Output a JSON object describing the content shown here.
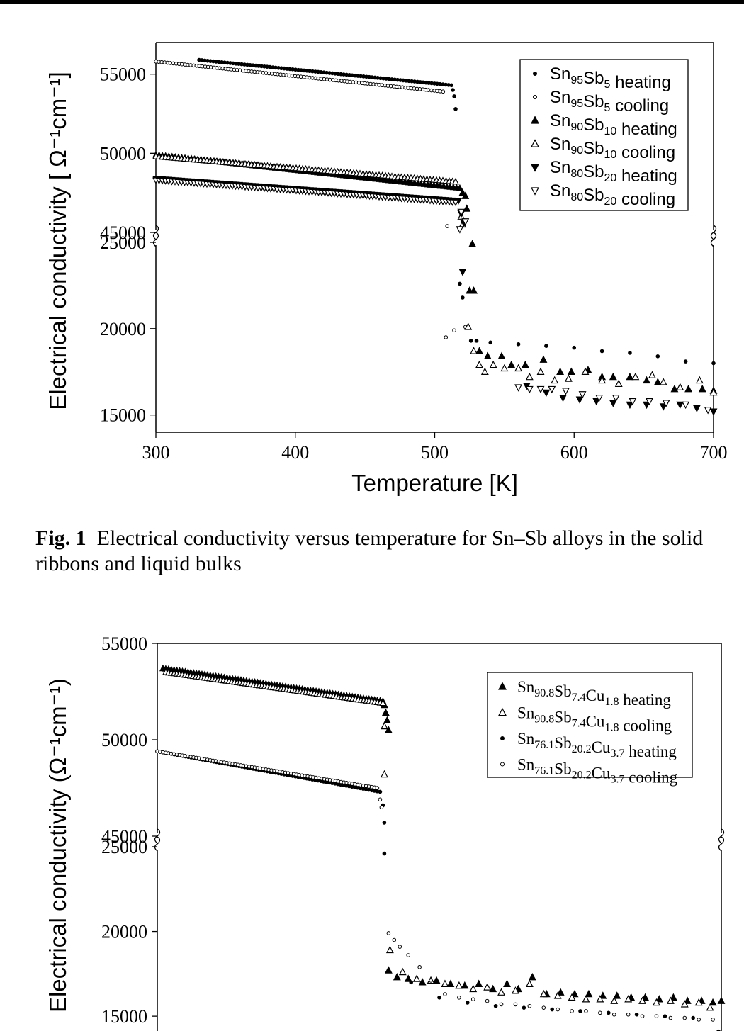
{
  "figure1": {
    "caption_label": "Fig. 1",
    "caption_text": "Electrical conductivity versus temperature for Sn–Sb alloys in the solid ribbons and liquid bulks"
  },
  "chart_data": [
    {
      "type": "scatter",
      "xlabel": "Temperature [K]",
      "ylabel": "Electrical conductivity [ Ω⁻¹cm⁻¹]",
      "xlim": [
        300,
        700
      ],
      "xticks": [
        300,
        400,
        500,
        600,
        700
      ],
      "ylim_upper": [
        45000,
        57000
      ],
      "ylim_lower": [
        14000,
        25000
      ],
      "yticks_upper": [
        45000,
        50000,
        55000
      ],
      "yticks_lower": [
        15000,
        20000,
        25000
      ],
      "axis_break": true,
      "legend_position": "top-right",
      "series": [
        {
          "name": "Sn95Sb5 heating",
          "marker": "dot-filled",
          "segments": [
            {
              "x0": 331,
              "y0": 55900,
              "x1": 512,
              "y1": 54300,
              "n": 90
            }
          ],
          "points": [
            [
              513,
              54000
            ],
            [
              514,
              53600
            ],
            [
              515,
              52800
            ],
            [
              518,
              22600
            ],
            [
              520,
              21800
            ],
            [
              526,
              19300
            ],
            [
              530,
              19300
            ],
            [
              540,
              19200
            ],
            [
              560,
              19100
            ],
            [
              580,
              19000
            ],
            [
              600,
              18900
            ],
            [
              620,
              18700
            ],
            [
              640,
              18600
            ],
            [
              660,
              18400
            ],
            [
              680,
              18100
            ],
            [
              700,
              18000
            ]
          ]
        },
        {
          "name": "Sn95Sb5 cooling",
          "marker": "dot-open",
          "segments": [
            {
              "x0": 300,
              "y0": 55800,
              "x1": 506,
              "y1": 53900,
              "n": 100
            }
          ],
          "points": [
            [
              509,
              45400
            ],
            [
              508,
              19500
            ],
            [
              514,
              19900
            ],
            [
              522,
              20100
            ]
          ]
        },
        {
          "name": "Sn90Sb10 heating",
          "marker": "triangle-up-filled",
          "segments": [
            {
              "x0": 300,
              "y0": 49900,
              "x1": 518,
              "y1": 47800,
              "n": 95
            }
          ],
          "points": [
            [
              520,
              47500
            ],
            [
              522,
              47300
            ],
            [
              523,
              46500
            ],
            [
              527,
              24900
            ],
            [
              525,
              22200
            ],
            [
              528,
              22200
            ],
            [
              532,
              18700
            ],
            [
              538,
              18400
            ],
            [
              548,
              18400
            ],
            [
              555,
              17900
            ],
            [
              565,
              17900
            ],
            [
              578,
              18200
            ],
            [
              590,
              17500
            ],
            [
              598,
              17500
            ],
            [
              610,
              17600
            ],
            [
              620,
              17200
            ],
            [
              628,
              17200
            ],
            [
              640,
              17200
            ],
            [
              652,
              17000
            ],
            [
              660,
              16900
            ],
            [
              672,
              16500
            ],
            [
              682,
              16500
            ],
            [
              692,
              16500
            ],
            [
              700,
              16400
            ]
          ]
        },
        {
          "name": "Sn90Sb10 cooling",
          "marker": "triangle-up-open",
          "segments": [
            {
              "x0": 300,
              "y0": 49800,
              "x1": 515,
              "y1": 48200,
              "n": 95
            }
          ],
          "points": [
            [
              519,
              46000
            ],
            [
              520,
              45500
            ],
            [
              524,
              20100
            ],
            [
              528,
              18700
            ],
            [
              532,
              17900
            ],
            [
              536,
              17500
            ],
            [
              542,
              17900
            ],
            [
              550,
              17700
            ],
            [
              560,
              17700
            ],
            [
              568,
              17200
            ],
            [
              576,
              17500
            ],
            [
              586,
              17000
            ],
            [
              596,
              17100
            ],
            [
              608,
              17500
            ],
            [
              620,
              17000
            ],
            [
              632,
              16800
            ],
            [
              644,
              17200
            ],
            [
              656,
              17300
            ],
            [
              664,
              16900
            ],
            [
              676,
              16600
            ],
            [
              690,
              17000
            ],
            [
              700,
              16300
            ]
          ]
        },
        {
          "name": "Sn80Sb20 heating",
          "marker": "triangle-down-filled",
          "segments": [
            {
              "x0": 300,
              "y0": 48400,
              "x1": 517,
              "y1": 47000,
              "n": 95
            }
          ],
          "points": [
            [
              519,
              46200
            ],
            [
              521,
              45600
            ],
            [
              520,
              23300
            ],
            [
              566,
              16700
            ],
            [
              580,
              16300
            ],
            [
              592,
              16000
            ],
            [
              604,
              15900
            ],
            [
              616,
              15800
            ],
            [
              628,
              15700
            ],
            [
              640,
              15600
            ],
            [
              652,
              15600
            ],
            [
              664,
              15500
            ],
            [
              676,
              15600
            ],
            [
              688,
              15400
            ],
            [
              700,
              15200
            ]
          ]
        },
        {
          "name": "Sn80Sb20 cooling",
          "marker": "triangle-down-open",
          "segments": [
            {
              "x0": 300,
              "y0": 48300,
              "x1": 515,
              "y1": 46900,
              "n": 95
            }
          ],
          "points": [
            [
              519,
              46300
            ],
            [
              522,
              45700
            ],
            [
              518,
              45200
            ],
            [
              560,
              16600
            ],
            [
              568,
              16500
            ],
            [
              576,
              16500
            ],
            [
              584,
              16500
            ],
            [
              594,
              16400
            ],
            [
              606,
              16200
            ],
            [
              618,
              16000
            ],
            [
              630,
              16000
            ],
            [
              642,
              15800
            ],
            [
              654,
              15800
            ],
            [
              666,
              15700
            ],
            [
              680,
              15600
            ],
            [
              696,
              15300
            ]
          ]
        }
      ]
    },
    {
      "type": "scatter",
      "xlabel": "",
      "ylabel": "Electrical conductivity (Ω⁻¹cm⁻¹)",
      "xlim": [
        300,
        700
      ],
      "ylim_upper": [
        45000,
        55000
      ],
      "ylim_lower": [
        13500,
        25000
      ],
      "yticks_upper": [
        45000,
        50000,
        55000
      ],
      "yticks_lower": [
        15000,
        20000,
        25000
      ],
      "axis_break": true,
      "legend_position": "top-right",
      "series": [
        {
          "name": "Sn90.8Sb7.4Cu1.8 heating",
          "marker": "triangle-up-filled",
          "segments": [
            {
              "x0": 304,
              "y0": 53700,
              "x1": 460,
              "y1": 52000,
              "n": 80
            }
          ],
          "points": [
            [
              461,
              51800
            ],
            [
              462,
              51400
            ],
            [
              463,
              51000
            ],
            [
              464,
              50500
            ],
            [
              464,
              17700
            ],
            [
              470,
              17300
            ],
            [
              478,
              17200
            ],
            [
              488,
              17000
            ],
            [
              498,
              17100
            ],
            [
              508,
              16900
            ],
            [
              518,
              16800
            ],
            [
              528,
              16900
            ],
            [
              538,
              16600
            ],
            [
              548,
              16900
            ],
            [
              556,
              16600
            ],
            [
              566,
              17300
            ],
            [
              576,
              16300
            ],
            [
              586,
              16400
            ],
            [
              596,
              16300
            ],
            [
              606,
              16300
            ],
            [
              616,
              16200
            ],
            [
              626,
              16200
            ],
            [
              636,
              16100
            ],
            [
              646,
              16100
            ],
            [
              656,
              16000
            ],
            [
              666,
              16100
            ],
            [
              676,
              15900
            ],
            [
              686,
              15900
            ],
            [
              694,
              15800
            ],
            [
              700,
              15900
            ]
          ]
        },
        {
          "name": "Sn90.8Sb7.4Cu1.8 cooling",
          "marker": "triangle-up-open",
          "segments": [
            {
              "x0": 306,
              "y0": 53500,
              "x1": 460,
              "y1": 51900,
              "n": 80
            }
          ],
          "points": [
            [
              461,
              50700
            ],
            [
              461,
              48200
            ],
            [
              465,
              18900
            ],
            [
              474,
              17600
            ],
            [
              484,
              17200
            ],
            [
              494,
              17100
            ],
            [
              504,
              16900
            ],
            [
              514,
              16800
            ],
            [
              524,
              16600
            ],
            [
              534,
              16700
            ],
            [
              544,
              16400
            ],
            [
              554,
              16500
            ],
            [
              564,
              16900
            ],
            [
              574,
              16300
            ],
            [
              584,
              16200
            ],
            [
              594,
              16100
            ],
            [
              604,
              16000
            ],
            [
              614,
              16000
            ],
            [
              624,
              15900
            ],
            [
              634,
              16000
            ],
            [
              644,
              15900
            ],
            [
              654,
              15800
            ],
            [
              664,
              15900
            ],
            [
              674,
              15700
            ],
            [
              684,
              15800
            ],
            [
              692,
              15500
            ]
          ]
        },
        {
          "name": "Sn76.1Sb20.2Cu3.7 heating",
          "marker": "dot-filled",
          "segments": [
            {
              "x0": 300,
              "y0": 49400,
              "x1": 458,
              "y1": 47300,
              "n": 80
            }
          ],
          "points": [
            [
              460,
              46600
            ],
            [
              461,
              45700
            ],
            [
              461,
              24600
            ],
            [
              480,
              17000
            ],
            [
              500,
              16100
            ],
            [
              520,
              15800
            ],
            [
              540,
              15600
            ],
            [
              560,
              15500
            ],
            [
              580,
              15400
            ],
            [
              600,
              15300
            ],
            [
              620,
              15200
            ],
            [
              640,
              15100
            ],
            [
              660,
              15000
            ],
            [
              680,
              14900
            ],
            [
              698,
              14100
            ]
          ]
        },
        {
          "name": "Sn76.1Sb20.2Cu3.7 cooling",
          "marker": "dot-open",
          "segments": [
            {
              "x0": 300,
              "y0": 49400,
              "x1": 456,
              "y1": 47500,
              "n": 80
            }
          ],
          "points": [
            [
              458,
              46900
            ],
            [
              459,
              46500
            ],
            [
              464,
              19900
            ],
            [
              468,
              19500
            ],
            [
              472,
              19100
            ],
            [
              478,
              18600
            ],
            [
              486,
              17900
            ],
            [
              494,
              17100
            ],
            [
              504,
              16300
            ],
            [
              514,
              16100
            ],
            [
              524,
              16000
            ],
            [
              534,
              15900
            ],
            [
              544,
              15700
            ],
            [
              554,
              15700
            ],
            [
              564,
              15600
            ],
            [
              574,
              15500
            ],
            [
              584,
              15400
            ],
            [
              594,
              15300
            ],
            [
              604,
              15300
            ],
            [
              614,
              15200
            ],
            [
              624,
              15100
            ],
            [
              634,
              15100
            ],
            [
              644,
              15000
            ],
            [
              654,
              15000
            ],
            [
              664,
              14900
            ],
            [
              674,
              14900
            ],
            [
              684,
              14800
            ],
            [
              694,
              14800
            ]
          ]
        }
      ]
    }
  ]
}
